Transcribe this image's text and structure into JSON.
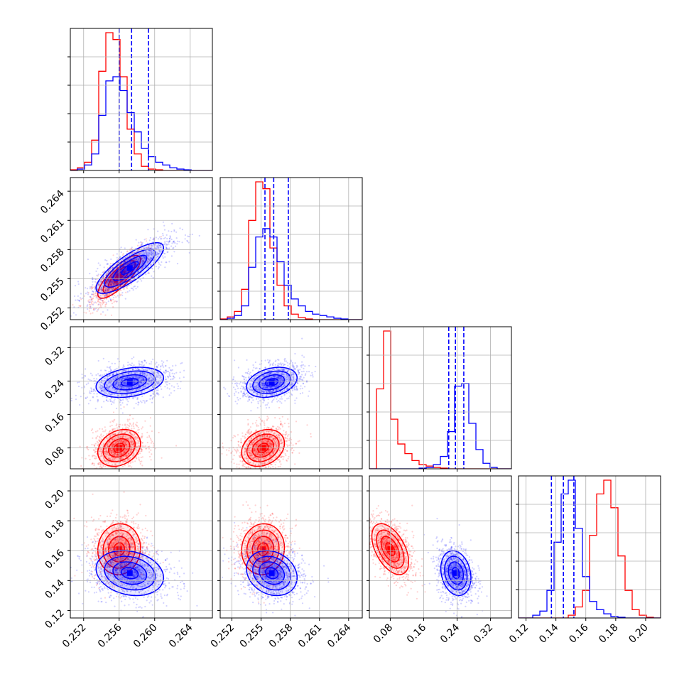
{
  "chart_data": {
    "type": "corner",
    "params": [
      {
        "ticks": [
          0.252,
          0.256,
          0.26,
          0.264
        ],
        "tick_labels": [
          "0.252",
          "0.256",
          "0.260",
          "0.264"
        ],
        "range": [
          0.2505,
          0.2665
        ]
      },
      {
        "ticks": [
          0.252,
          0.255,
          0.258,
          0.261,
          0.264
        ],
        "tick_labels": [
          "0.252",
          "0.255",
          "0.258",
          "0.261",
          "0.264"
        ],
        "range": [
          0.2508,
          0.2654
        ]
      },
      {
        "ticks": [
          0.08,
          0.16,
          0.24,
          0.32
        ],
        "tick_labels": [
          "0.08",
          "0.16",
          "0.24",
          "0.32"
        ],
        "range": [
          0.03,
          0.37
        ]
      },
      {
        "ticks": [
          0.12,
          0.14,
          0.16,
          0.18,
          0.2
        ],
        "tick_labels": [
          "0.12",
          "0.14",
          "0.16",
          "0.18",
          "0.20"
        ],
        "range": [
          0.115,
          0.21
        ]
      }
    ],
    "series": [
      {
        "color": "#ff0000",
        "mean": [
          0.256,
          0.2552,
          0.08,
          0.161
        ],
        "sd": [
          0.0012,
          0.0011,
          0.022,
          0.0085
        ],
        "corr": [
          [
            1,
            0.8,
            0.25,
            0.05
          ],
          [
            0.8,
            1,
            0.25,
            0.05
          ],
          [
            0.25,
            0.25,
            1,
            -0.5
          ],
          [
            0.05,
            0.05,
            -0.5,
            1
          ]
        ],
        "hist": [
          {
            "edges": [
              0.2505,
              0.2665
            ],
            "counts": [
              0.5,
              2,
              6,
              22,
              72,
              100,
              95,
              68,
              30,
              12,
              3,
              1,
              0.5,
              0,
              0,
              0,
              0,
              0,
              0,
              0
            ]
          },
          {
            "edges": [
              0.2508,
              0.2654
            ],
            "counts": [
              0.5,
              2,
              6,
              22,
              72,
              100,
              95,
              52,
              25,
              10,
              4,
              1.5,
              0.5,
              0,
              0,
              0,
              0,
              0,
              0,
              0
            ]
          },
          {
            "edges": [
              0.03,
              0.37
            ],
            "counts": [
              0,
              58,
              100,
              36,
              18,
              11,
              6,
              3,
              2,
              1,
              0.5,
              0,
              0,
              0,
              0,
              0,
              0,
              0,
              0,
              0
            ]
          },
          {
            "edges": [
              0.115,
              0.21
            ],
            "counts": [
              0,
              0,
              0,
              0,
              0,
              0,
              0,
              2,
              8,
              20,
              60,
              90,
              100,
              80,
              45,
              20,
              6,
              2,
              0.5,
              0
            ]
          }
        ]
      },
      {
        "color": "#0000ff",
        "mean": [
          0.2572,
          0.2561,
          0.237,
          0.145
        ],
        "sd": [
          0.0019,
          0.0013,
          0.018,
          0.0075
        ],
        "corr": [
          [
            1,
            0.8,
            0.3,
            -0.2
          ],
          [
            0.8,
            1,
            0.3,
            -0.2
          ],
          [
            0.3,
            0.3,
            1,
            -0.2
          ],
          [
            -0.2,
            -0.2,
            -0.2,
            1
          ]
        ],
        "hist": [
          {
            "edges": [
              0.2505,
              0.2665
            ],
            "counts": [
              0,
              1,
              4,
              12,
              40,
              65,
              68,
              58,
              42,
              28,
              16,
              10,
              6,
              4,
              2,
              1,
              0.5,
              0,
              0,
              0
            ]
          },
          {
            "edges": [
              0.2508,
              0.2654
            ],
            "counts": [
              0,
              1,
              3,
              10,
              38,
              60,
              66,
              60,
              42,
              25,
              15,
              10,
              6,
              4,
              3,
              2,
              1,
              0.5,
              0,
              0
            ]
          },
          {
            "edges": [
              0.03,
              0.37
            ],
            "counts": [
              0,
              0,
              0,
              0,
              0,
              0,
              0,
              0.5,
              1,
              3,
              9,
              27,
              60,
              62,
              33,
              14,
              4,
              1,
              0,
              0
            ]
          },
          {
            "edges": [
              0.115,
              0.21
            ],
            "counts": [
              0,
              0,
              2,
              5,
              20,
              55,
              90,
              100,
              65,
              30,
              12,
              6,
              3,
              1,
              0.5,
              0,
              0,
              0,
              0,
              0
            ]
          }
        ]
      }
    ],
    "quantiles": [
      [
        0.256,
        0.2574,
        0.2593
      ],
      [
        0.2554,
        0.2563,
        0.2578
      ],
      [
        0.22,
        0.236,
        0.256
      ],
      [
        0.137,
        0.145,
        0.152
      ]
    ],
    "quantile_line_color": "#0000ff",
    "contour_levels_sigma": [
      0.5,
      1.0,
      1.5,
      2.0
    ],
    "grid": true
  }
}
